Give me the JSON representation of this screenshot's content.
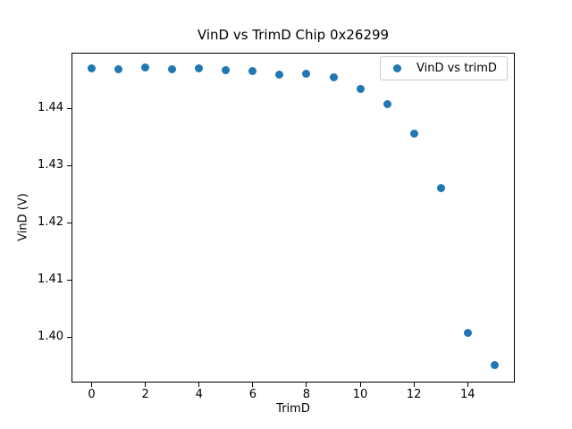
{
  "chart_data": {
    "type": "scatter",
    "title": "VinD vs TrimD Chip 0x26299",
    "xlabel": "TrimD",
    "ylabel": "VinD (V)",
    "legend": {
      "position": "upper right",
      "entries": [
        "VinD vs trimD"
      ]
    },
    "marker_color": "#1f77b4",
    "text_color": "#000000",
    "background_color": "#ffffff",
    "x": [
      0,
      1,
      2,
      3,
      4,
      5,
      6,
      7,
      8,
      9,
      10,
      11,
      12,
      13,
      14,
      15
    ],
    "y": [
      1.447,
      1.4468,
      1.4472,
      1.4468,
      1.447,
      1.4466,
      1.4465,
      1.4458,
      1.446,
      1.4454,
      1.4434,
      1.4407,
      1.4356,
      1.426,
      1.4007,
      1.3951
    ],
    "xlim": [
      -0.75,
      15.755
    ],
    "ylim": [
      1.3921,
      1.4497
    ],
    "xticks": [
      0,
      2,
      4,
      6,
      8,
      10,
      12,
      14
    ],
    "xtick_labels": [
      "0",
      "2",
      "4",
      "6",
      "8",
      "10",
      "12",
      "14"
    ],
    "yticks": [
      1.4,
      1.41,
      1.42,
      1.43,
      1.44
    ],
    "ytick_labels": [
      "1.40",
      "1.41",
      "1.42",
      "1.43",
      "1.44"
    ],
    "grid": false
  }
}
